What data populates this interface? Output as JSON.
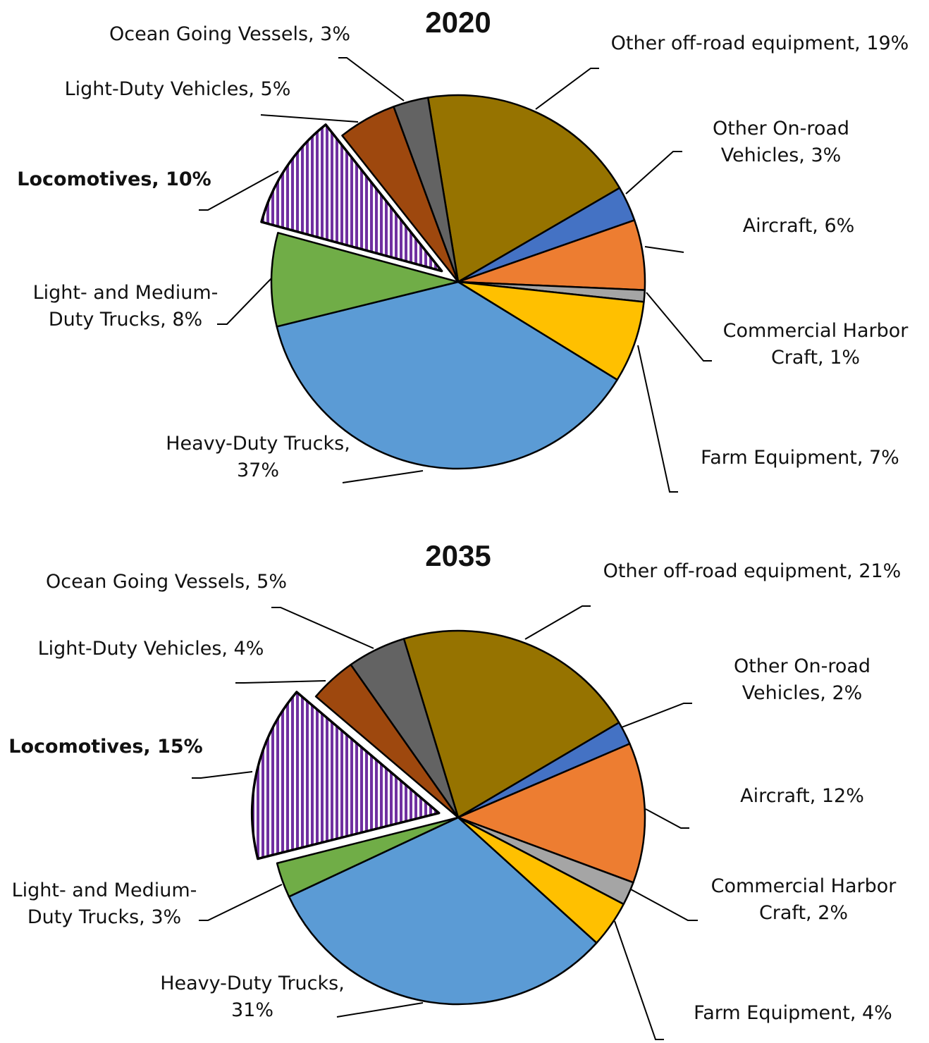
{
  "chart_data": [
    {
      "type": "pie",
      "title": "2020",
      "labels": [
        [
          "Other off-road equipment, 19%"
        ],
        [
          "Other On-road",
          "Vehicles, 3%"
        ],
        [
          "Aircraft, 6%"
        ],
        [
          "Commercial Harbor",
          "Craft, 1%"
        ],
        [
          "Farm Equipment, 7%"
        ],
        [
          "Heavy-Duty Trucks,",
          "37%"
        ],
        [
          "Light- and Medium-",
          "Duty Trucks, 8%"
        ],
        [
          "Locomotives, 10%"
        ],
        [
          "Light-Duty Vehicles, 5%"
        ],
        [
          "Ocean Going Vessels, 3%"
        ]
      ],
      "values": [
        19,
        3,
        6,
        1,
        7,
        37,
        8,
        10,
        5,
        3
      ],
      "colors": [
        "#967300",
        "#4472c4",
        "#ed7d31",
        "#a5a5a5",
        "#ffc000",
        "#5b9bd5",
        "#70ad47",
        "#7030a0",
        "#9e480e",
        "#636363"
      ],
      "explode": 7
    },
    {
      "type": "pie",
      "title": "2035",
      "labels": [
        [
          "Other off-road equipment, 21%"
        ],
        [
          "Other On-road",
          "Vehicles, 2%"
        ],
        [
          "Aircraft, 12%"
        ],
        [
          "Commercial Harbor",
          "Craft, 2%"
        ],
        [
          "Farm Equipment, 4%"
        ],
        [
          "Heavy-Duty Trucks,",
          "31%"
        ],
        [
          "Light- and Medium-",
          "Duty Trucks, 3%"
        ],
        [
          "Locomotives, 15%"
        ],
        [
          "Light-Duty Vehicles, 4%"
        ],
        [
          "Ocean Going Vessels, 5%"
        ]
      ],
      "values": [
        21,
        2,
        12,
        2,
        4,
        31,
        3,
        15,
        4,
        5
      ],
      "colors": [
        "#967300",
        "#4472c4",
        "#ed7d31",
        "#a5a5a5",
        "#ffc000",
        "#5b9bd5",
        "#70ad47",
        "#7030a0",
        "#9e480e",
        "#636363"
      ],
      "explode": 7
    }
  ]
}
